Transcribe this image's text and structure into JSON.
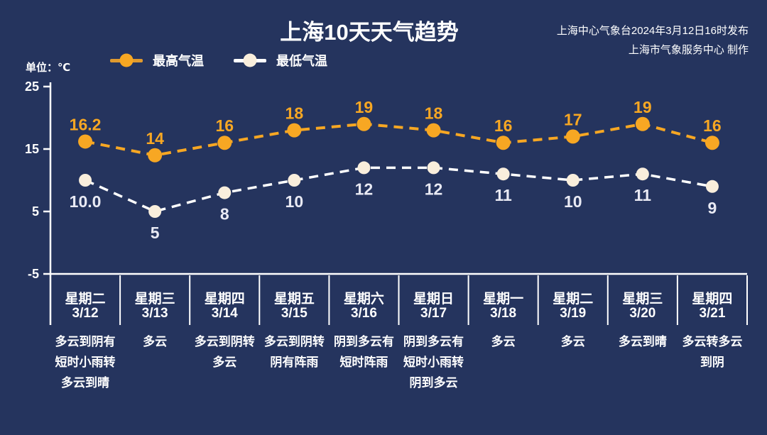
{
  "title": "上海10天天气趋势",
  "publisher": {
    "line1": "上海中心气象台2024年3月12日16时发布",
    "line2": "上海市气象服务中心 制作"
  },
  "unit_label": "单位：℃",
  "legend": {
    "high_label": "最高气温",
    "low_label": "最低气温"
  },
  "colors": {
    "background": "#25345E",
    "high_line": "#E09A2E",
    "high_marker": "#F7A723",
    "high_label": "#F7A723",
    "low_line": "#FFFFFF",
    "low_marker": "#F9EEDC",
    "low_label": "#E9EAF4",
    "axis": "#FFFFFF",
    "text": "#FFFFFF"
  },
  "chart_data": {
    "type": "line",
    "title": "上海10天天气趋势",
    "ylabel": "单位：℃",
    "ylim": [
      -5,
      25
    ],
    "yticks": [
      25,
      15,
      5,
      -5
    ],
    "legend_position": "top",
    "grid": false,
    "categories": [
      {
        "weekday": "星期二",
        "date": "3/12",
        "condition": "多云到阴有短时小雨转多云到晴",
        "condition_lines": [
          "多云到阴有",
          "短时小雨转",
          "多云到晴"
        ]
      },
      {
        "weekday": "星期三",
        "date": "3/13",
        "condition": "多云",
        "condition_lines": [
          "多云"
        ]
      },
      {
        "weekday": "星期四",
        "date": "3/14",
        "condition": "多云到阴转多云",
        "condition_lines": [
          "多云到阴转",
          "多云"
        ]
      },
      {
        "weekday": "星期五",
        "date": "3/15",
        "condition": "多云到阴转阴有阵雨",
        "condition_lines": [
          "多云到阴转",
          "阴有阵雨"
        ]
      },
      {
        "weekday": "星期六",
        "date": "3/16",
        "condition": "阴到多云有短时阵雨",
        "condition_lines": [
          "阴到多云有",
          "短时阵雨"
        ]
      },
      {
        "weekday": "星期日",
        "date": "3/17",
        "condition": "阴到多云有短时小雨转阴到多云",
        "condition_lines": [
          "阴到多云有",
          "短时小雨转",
          "阴到多云"
        ]
      },
      {
        "weekday": "星期一",
        "date": "3/18",
        "condition": "多云",
        "condition_lines": [
          "多云"
        ]
      },
      {
        "weekday": "星期二",
        "date": "3/19",
        "condition": "多云",
        "condition_lines": [
          "多云"
        ]
      },
      {
        "weekday": "星期三",
        "date": "3/20",
        "condition": "多云到晴",
        "condition_lines": [
          "多云到晴"
        ]
      },
      {
        "weekday": "星期四",
        "date": "3/21",
        "condition": "多云转多云到阴",
        "condition_lines": [
          "多云转多云",
          "到阴"
        ]
      }
    ],
    "series": [
      {
        "name": "最高气温",
        "values": [
          16.2,
          14,
          16,
          18,
          19,
          18,
          16,
          17,
          19,
          16
        ],
        "labels": [
          "16.2",
          "14",
          "16",
          "18",
          "19",
          "18",
          "16",
          "17",
          "19",
          "16"
        ]
      },
      {
        "name": "最低气温",
        "values": [
          10.0,
          5,
          8,
          10,
          12,
          12,
          11,
          10,
          11,
          9
        ],
        "labels": [
          "10.0",
          "5",
          "8",
          "10",
          "12",
          "12",
          "11",
          "10",
          "11",
          "9"
        ]
      }
    ]
  }
}
